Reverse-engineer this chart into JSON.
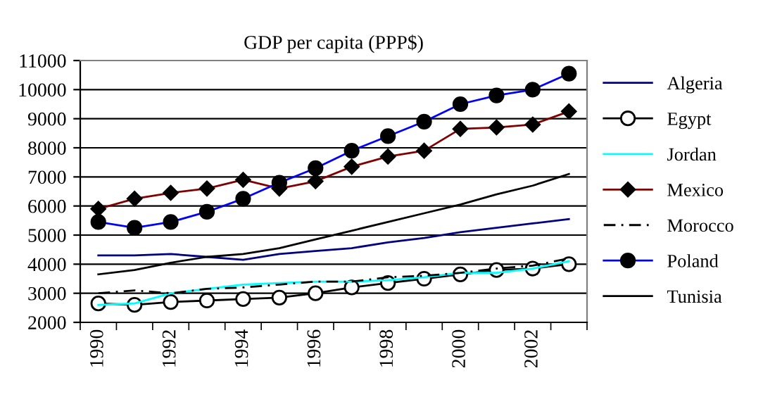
{
  "chart_data": {
    "type": "line",
    "title": "GDP per capita (PPP$)",
    "categories": [
      "1990",
      null,
      "1992",
      null,
      "1994",
      null,
      "1996",
      null,
      "1998",
      null,
      "2000",
      null,
      "2002",
      null
    ],
    "series": [
      {
        "name": "Algeria",
        "color": "#000080",
        "marker": "none",
        "line_style": "solid",
        "values": [
          4300,
          4300,
          4350,
          4250,
          4150,
          4350,
          4450,
          4550,
          4750,
          4900,
          5100,
          5250,
          5400,
          5550
        ]
      },
      {
        "name": "Egypt",
        "color": "#000000",
        "marker": "circle",
        "line_style": "solid",
        "values": [
          2650,
          2600,
          2700,
          2750,
          2800,
          2850,
          3000,
          3200,
          3350,
          3500,
          3650,
          3800,
          3850,
          4000
        ]
      },
      {
        "name": "Jordan",
        "color": "#00ffff",
        "marker": "none",
        "line_style": "solid",
        "values": [
          2600,
          2650,
          3000,
          3150,
          3300,
          3350,
          3400,
          3400,
          3450,
          3550,
          3700,
          3700,
          3850,
          4100
        ]
      },
      {
        "name": "Mexico",
        "color": "#800000",
        "marker": "diamond",
        "line_style": "solid",
        "values": [
          5900,
          6250,
          6450,
          6600,
          6900,
          6600,
          6850,
          7350,
          7700,
          7900,
          8650,
          8700,
          8800,
          9250
        ]
      },
      {
        "name": "Morocco",
        "color": "#000000",
        "marker": "none",
        "line_style": "dashdot",
        "values": [
          3000,
          3100,
          3000,
          3150,
          3200,
          3300,
          3400,
          3400,
          3550,
          3600,
          3700,
          3850,
          3950,
          4200
        ]
      },
      {
        "name": "Poland",
        "color": "#0000ff",
        "marker": "circle_filled",
        "line_style": "solid",
        "values": [
          5450,
          5250,
          5450,
          5800,
          6250,
          6800,
          7300,
          7900,
          8400,
          8900,
          9500,
          9800,
          10000,
          10550
        ]
      },
      {
        "name": "Tunisia",
        "color": "#000000",
        "marker": "none",
        "line_style": "solid",
        "values": [
          3650,
          3800,
          4050,
          4250,
          4350,
          4550,
          4850,
          5150,
          5450,
          5750,
          6050,
          6400,
          6700,
          7100
        ]
      }
    ],
    "ylim": [
      2000,
      11000
    ],
    "yticks": [
      2000,
      3000,
      4000,
      5000,
      6000,
      7000,
      8000,
      9000,
      10000,
      11000
    ],
    "grid": "y",
    "legend": "right"
  }
}
